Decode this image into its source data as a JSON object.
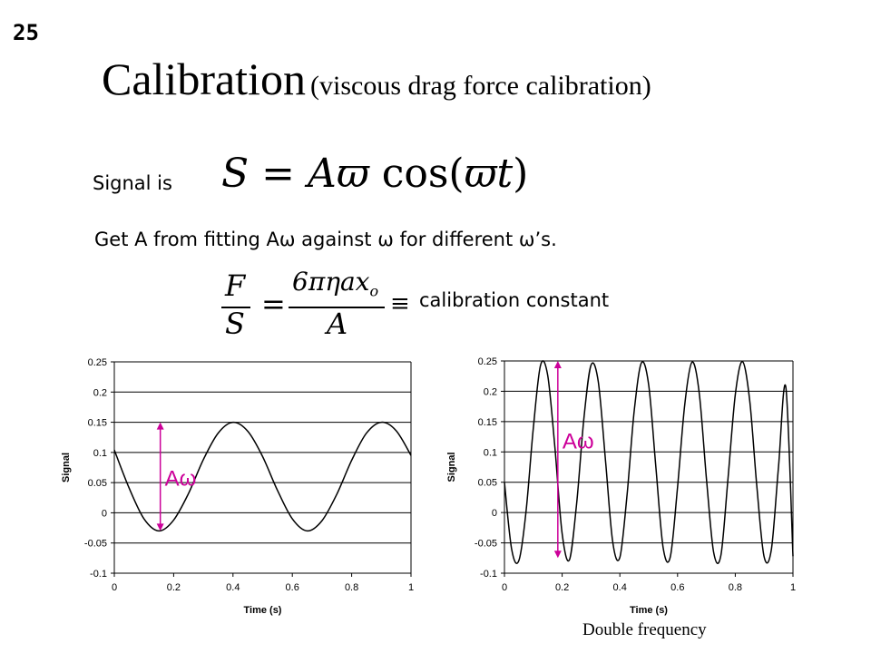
{
  "slide_number": "25",
  "title": {
    "main": "Calibration",
    "subtitle": "(viscous drag force calibration)"
  },
  "signal_label": "Signal is",
  "equation_signal": {
    "lhs": "S",
    "eq": "=",
    "rhs_coeff": "A",
    "omega": "ϖ",
    "func": "cos(",
    "arg": "ϖt",
    "close": ")"
  },
  "fit_text": "Get A from fitting Aω against ω for different ω’s.",
  "equation_ratio": {
    "numerator_lhs": "F",
    "denominator_lhs": "S",
    "eq": "=",
    "numerator_rhs": "6πηax",
    "subscript": "o",
    "denominator_rhs": "A",
    "equiv": "≡"
  },
  "calibration_constant_label": "calibration constant",
  "annotation_label": "Aω",
  "caption_right": "Double frequency",
  "colors": {
    "annotation": "#cc0099",
    "curve": "#000000",
    "grid": "#000000"
  },
  "chart_data": [
    {
      "type": "line",
      "xlabel": "Time (s)",
      "ylabel": "Signal",
      "xlim": [
        0,
        1
      ],
      "ylim": [
        -0.1,
        0.25
      ],
      "x_ticks": [
        "0",
        "0.2",
        "0.4",
        "0.6",
        "0.8",
        "1"
      ],
      "y_ticks": [
        "0.25",
        "0.2",
        "0.15",
        "0.1",
        "0.05",
        "0",
        "-0.05",
        "-0.1"
      ],
      "grid": true,
      "series": [
        {
          "x": [
            0,
            0.05,
            0.1,
            0.15,
            0.2,
            0.25,
            0.3,
            0.35,
            0.4,
            0.45,
            0.5,
            0.55,
            0.6,
            0.65,
            0.7,
            0.75,
            0.8,
            0.85,
            0.9,
            0.95,
            1.0
          ],
          "y": [
            0.104,
            0.041,
            -0.01,
            -0.03,
            -0.012,
            0.032,
            0.088,
            0.132,
            0.15,
            0.135,
            0.093,
            0.037,
            -0.01,
            -0.03,
            -0.013,
            0.031,
            0.087,
            0.132,
            0.15,
            0.136,
            0.095
          ]
        }
      ],
      "annotation": {
        "label": "Aω",
        "x": 0.155,
        "y_from": 0.15,
        "y_to": -0.03
      }
    },
    {
      "type": "line",
      "xlabel": "Time (s)",
      "ylabel": "Signal",
      "xlim": [
        0,
        1
      ],
      "ylim": [
        -0.1,
        0.25
      ],
      "x_ticks": [
        "0",
        "0.2",
        "0.4",
        "0.6",
        "0.8",
        "1"
      ],
      "y_ticks": [
        "0.25",
        "0.2",
        "0.15",
        "0.1",
        "0.05",
        "0",
        "-0.05",
        "-0.1"
      ],
      "grid": true,
      "series": [
        {
          "x": [
            0,
            0.025,
            0.05,
            0.075,
            0.1,
            0.125,
            0.15,
            0.175,
            0.2,
            0.225,
            0.25,
            0.275,
            0.3,
            0.325,
            0.35,
            0.375,
            0.4,
            0.425,
            0.45,
            0.475,
            0.5,
            0.525,
            0.55,
            0.575,
            0.6,
            0.625,
            0.65,
            0.675,
            0.7,
            0.725,
            0.75,
            0.775,
            0.8,
            0.825,
            0.85,
            0.875,
            0.9,
            0.925,
            0.95,
            0.975,
            1.0
          ],
          "y": [
            0.05,
            -0.061,
            -0.079,
            0.002,
            0.139,
            0.243,
            0.226,
            0.106,
            -0.035,
            -0.078,
            0.014,
            0.153,
            0.243,
            0.216,
            0.087,
            -0.048,
            -0.074,
            0.03,
            0.169,
            0.247,
            0.21,
            0.073,
            -0.058,
            -0.073,
            0.042,
            0.179,
            0.248,
            0.198,
            0.056,
            -0.065,
            -0.071,
            0.058,
            0.194,
            0.249,
            0.185,
            0.041,
            -0.073,
            -0.061,
            0.076,
            0.207,
            -0.072
          ]
        }
      ],
      "annotation": {
        "label": "Aω",
        "x": 0.185,
        "y_from": 0.25,
        "y_to": -0.075
      }
    }
  ]
}
